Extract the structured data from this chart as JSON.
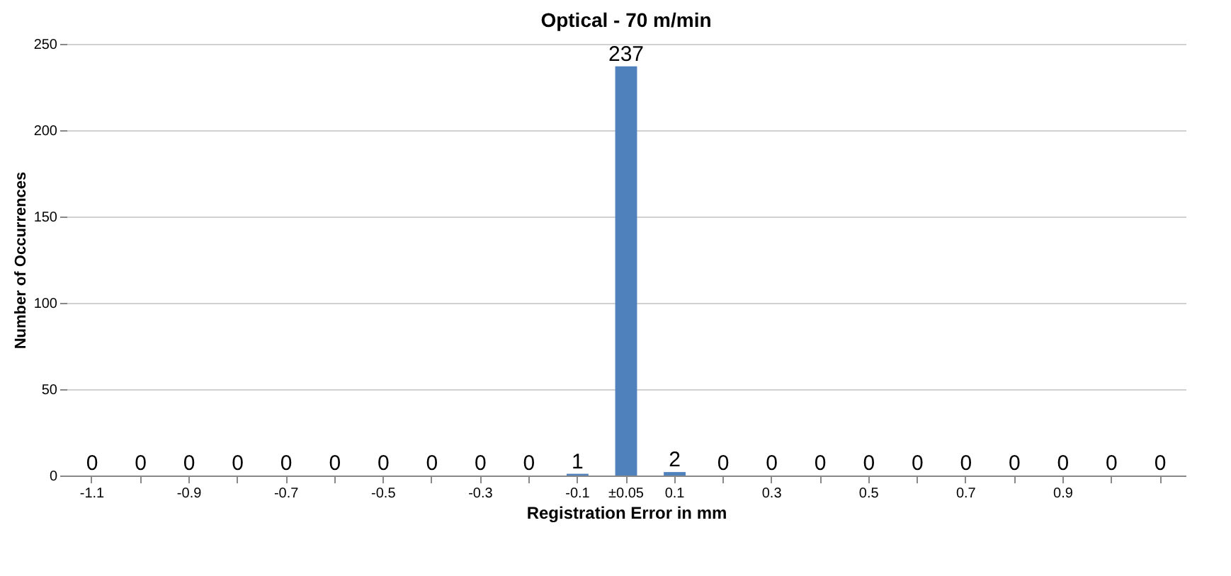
{
  "chart_data": {
    "type": "bar",
    "title": "Optical - 70 m/min",
    "xlabel": "Registration Error in mm",
    "ylabel": "Number of Occurrences",
    "categories": [
      "-1.1",
      null,
      "-0.9",
      null,
      "-0.7",
      null,
      "-0.5",
      null,
      "-0.3",
      null,
      "-0.1",
      "±0.05",
      "0.1",
      null,
      "0.3",
      null,
      "0.5",
      null,
      "0.7",
      null,
      "0.9",
      null,
      null
    ],
    "values": [
      0,
      0,
      0,
      0,
      0,
      0,
      0,
      0,
      0,
      0,
      1,
      237,
      2,
      0,
      0,
      0,
      0,
      0,
      0,
      0,
      0,
      0,
      0
    ],
    "color": "#4f81bd",
    "ylim": [
      0,
      250
    ],
    "yticks": [
      0,
      50,
      100,
      150,
      200,
      250
    ],
    "grid": "y",
    "data_labels": true
  }
}
